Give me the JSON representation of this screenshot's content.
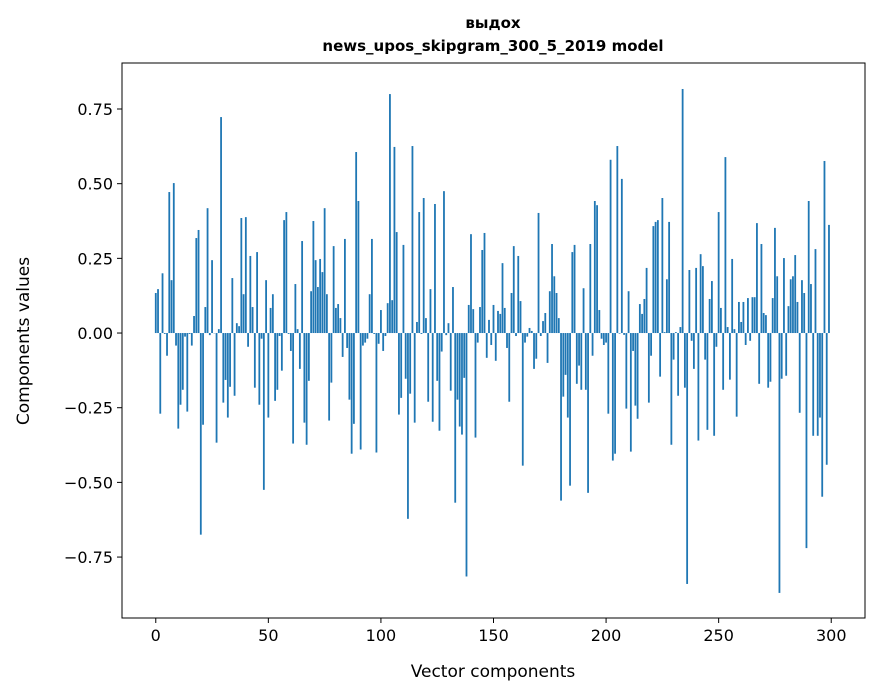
{
  "chart_data": {
    "type": "bar",
    "title": [
      "выдох",
      "news_upos_skipgram_300_5_2019 model"
    ],
    "xlabel": "Vector components",
    "ylabel": "Components values",
    "xlim": [
      -15,
      315
    ],
    "ylim": [
      -0.954,
      0.904
    ],
    "grid": false,
    "color": "#1f77b4",
    "xticks": [
      0,
      50,
      100,
      150,
      200,
      250,
      300
    ],
    "xtick_labels": [
      "0",
      "50",
      "100",
      "150",
      "200",
      "250",
      "300"
    ],
    "yticks": [
      -0.75,
      -0.5,
      -0.25,
      0,
      0.25,
      0.5,
      0.75
    ],
    "ytick_labels": [
      "−0.75",
      "−0.50",
      "−0.25",
      "0.00",
      "0.25",
      "0.50",
      "0.75"
    ],
    "values": [
      0.134,
      0.147,
      -0.27,
      0.2,
      -0.003,
      -0.076,
      0.472,
      0.177,
      0.502,
      -0.042,
      -0.32,
      -0.24,
      -0.19,
      -0.012,
      -0.263,
      -0.003,
      -0.042,
      0.057,
      0.318,
      0.345,
      -0.675,
      -0.307,
      0.087,
      0.418,
      -0.007,
      0.244,
      0.0,
      -0.367,
      0.013,
      0.723,
      -0.233,
      -0.157,
      -0.283,
      -0.18,
      0.184,
      -0.21,
      0.033,
      0.023,
      0.385,
      0.13,
      0.388,
      -0.046,
      0.258,
      0.087,
      -0.183,
      0.271,
      -0.24,
      -0.019,
      -0.525,
      0.177,
      -0.283,
      0.084,
      0.13,
      -0.227,
      -0.19,
      -0.01,
      -0.126,
      0.378,
      0.405,
      -0.003,
      -0.06,
      -0.37,
      0.164,
      0.013,
      -0.12,
      0.308,
      -0.3,
      -0.374,
      -0.16,
      0.14,
      0.375,
      0.244,
      0.154,
      0.248,
      0.204,
      0.418,
      0.13,
      -0.293,
      -0.166,
      0.291,
      0.084,
      0.097,
      0.05,
      -0.08,
      0.315,
      -0.05,
      -0.223,
      -0.404,
      -0.304,
      0.606,
      0.442,
      -0.39,
      -0.042,
      -0.032,
      -0.019,
      0.13,
      0.315,
      -0.003,
      -0.4,
      -0.036,
      0.077,
      -0.06,
      -0.01,
      0.1,
      0.8,
      0.11,
      0.623,
      0.338,
      -0.273,
      -0.217,
      0.295,
      -0.153,
      -0.622,
      -0.203,
      0.626,
      -0.3,
      0.037,
      0.405,
      -0.003,
      0.452,
      0.05,
      -0.23,
      0.147,
      -0.297,
      0.432,
      -0.16,
      -0.327,
      -0.062,
      0.475,
      -0.007,
      0.033,
      -0.193,
      0.154,
      -0.568,
      -0.223,
      -0.313,
      -0.34,
      -0.15,
      -0.815,
      0.094,
      0.331,
      0.08,
      -0.35,
      -0.032,
      0.087,
      0.278,
      0.335,
      -0.083,
      0.044,
      -0.04,
      0.094,
      -0.093,
      0.074,
      0.064,
      0.234,
      0.084,
      -0.05,
      -0.23,
      0.134,
      0.291,
      -0.01,
      0.258,
      0.107,
      -0.444,
      -0.032,
      -0.012,
      0.017,
      0.007,
      -0.12,
      -0.086,
      0.402,
      -0.01,
      0.04,
      0.067,
      -0.1,
      0.14,
      0.298,
      0.19,
      0.134,
      0.05,
      -0.561,
      -0.213,
      -0.14,
      -0.283,
      -0.511,
      0.271,
      0.295,
      -0.17,
      -0.109,
      -0.19,
      0.15,
      -0.19,
      -0.535,
      0.298,
      -0.076,
      0.442,
      0.428,
      0.077,
      -0.019,
      -0.04,
      -0.032,
      -0.27,
      0.58,
      -0.427,
      -0.404,
      0.626,
      -0.002,
      0.516,
      -0.006,
      -0.253,
      0.14,
      -0.397,
      -0.06,
      -0.243,
      -0.287,
      0.097,
      0.064,
      0.114,
      0.218,
      -0.233,
      -0.076,
      0.358,
      0.372,
      0.378,
      -0.146,
      0.452,
      0.003,
      0.18,
      0.372,
      -0.374,
      -0.089,
      0.003,
      -0.21,
      0.02,
      0.817,
      -0.183,
      -0.84,
      0.211,
      -0.026,
      -0.12,
      0.218,
      -0.36,
      0.264,
      0.224,
      -0.089,
      -0.324,
      0.114,
      0.174,
      -0.344,
      -0.046,
      0.405,
      0.084,
      -0.19,
      0.589,
      0.02,
      -0.156,
      0.248,
      0.013,
      -0.28,
      0.104,
      0.037,
      0.104,
      -0.04,
      0.117,
      -0.026,
      0.12,
      0.12,
      0.368,
      -0.17,
      0.298,
      0.067,
      0.06,
      -0.183,
      -0.163,
      0.117,
      0.352,
      0.19,
      -0.87,
      -0.153,
      0.251,
      -0.143,
      0.09,
      0.18,
      0.19,
      0.261,
      0.104,
      -0.267,
      0.177,
      0.134,
      -0.72,
      0.442,
      0.164,
      -0.344,
      0.281,
      -0.344,
      -0.283,
      -0.548,
      0.576,
      -0.441,
      0.362
    ]
  }
}
